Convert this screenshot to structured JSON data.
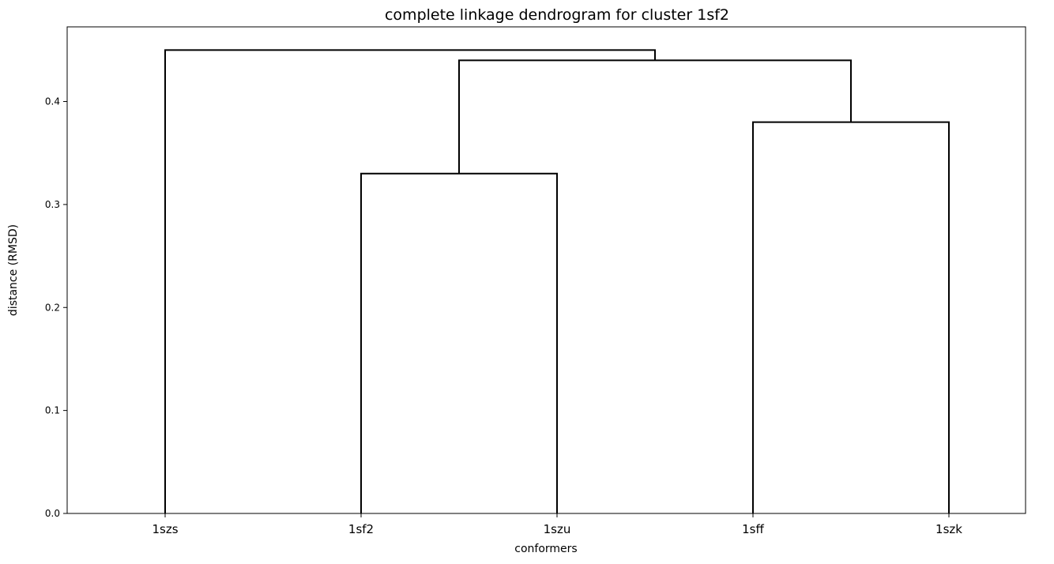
{
  "chart_data": {
    "type": "dendrogram",
    "title": "complete linkage dendrogram for cluster 1sf2",
    "xlabel": "conformers",
    "ylabel": "distance (RMSD)",
    "leaves": [
      "1szs",
      "1sf2",
      "1szu",
      "1sff",
      "1szk"
    ],
    "merges": [
      {
        "left": "1sf2",
        "right": "1szu",
        "height": 0.33
      },
      {
        "left": "1sff",
        "right": "1szk",
        "height": 0.38
      },
      {
        "left": "1sf2+1szu",
        "right": "1sff+1szk",
        "height": 0.44
      },
      {
        "left": "1szs",
        "right": "1sf2+1szu+1sff+1szk",
        "height": 0.45
      }
    ],
    "ylim": [
      0,
      0.4725
    ],
    "yticks": [
      0.0,
      0.1,
      0.2,
      0.3,
      0.4
    ],
    "ytick_labels": [
      "0.0",
      "0.1",
      "0.2",
      "0.3",
      "0.4"
    ],
    "grid": false,
    "line_color": "#000000"
  }
}
